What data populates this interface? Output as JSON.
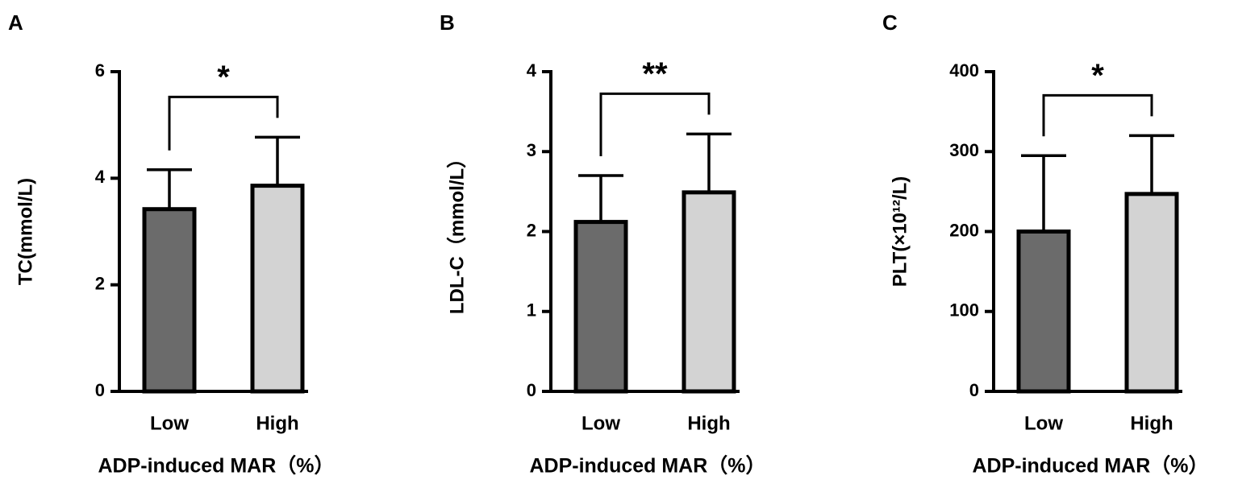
{
  "chart_data": [
    {
      "type": "bar",
      "panel": "A",
      "ylabel": "TC(mmol/L)",
      "xlabel": "ADP-induced MAR（%）",
      "categories": [
        "Low",
        "High"
      ],
      "values": [
        3.42,
        3.86
      ],
      "errors": [
        0.74,
        0.91
      ],
      "colors": [
        "#6b6b6b",
        "#d3d3d3"
      ],
      "ylim": [
        0,
        6
      ],
      "yticks": [
        0,
        2,
        4,
        6
      ],
      "significance": "*"
    },
    {
      "type": "bar",
      "panel": "B",
      "ylabel": "LDL-C（mmol/L）",
      "xlabel": "ADP-induced MAR（%）",
      "categories": [
        "Low",
        "High"
      ],
      "values": [
        2.12,
        2.49
      ],
      "errors": [
        0.58,
        0.73
      ],
      "colors": [
        "#6b6b6b",
        "#d3d3d3"
      ],
      "ylim": [
        0,
        4
      ],
      "yticks": [
        0,
        1,
        2,
        3,
        4
      ],
      "significance": "**"
    },
    {
      "type": "bar",
      "panel": "C",
      "ylabel": "PLT(×10¹²/L)",
      "xlabel": "ADP-induced MAR（%）",
      "categories": [
        "Low",
        "High"
      ],
      "values": [
        200,
        247
      ],
      "errors": [
        95,
        73
      ],
      "colors": [
        "#6b6b6b",
        "#d3d3d3"
      ],
      "ylim": [
        0,
        400
      ],
      "yticks": [
        0,
        100,
        200,
        300,
        400
      ],
      "significance": "*"
    }
  ]
}
